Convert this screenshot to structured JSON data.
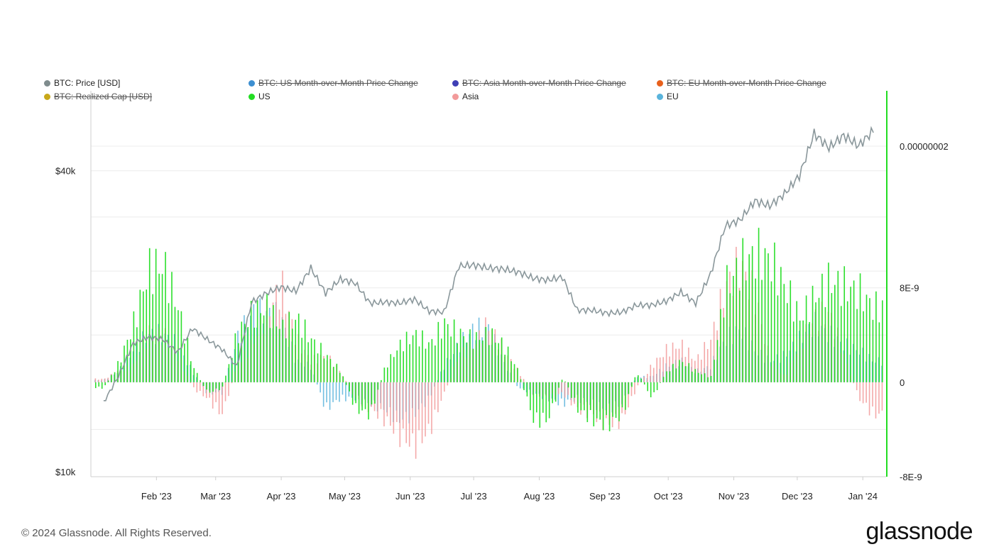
{
  "legend": [
    {
      "label": "BTC: Price [USD]",
      "color": "#7f8c8d",
      "enabled": true
    },
    {
      "label": "BTC: US Month-over-Month Price Change",
      "color": "#3d8fd1",
      "enabled": false
    },
    {
      "label": "BTC: Asia Month-over-Month Price Change",
      "color": "#3f3fb5",
      "enabled": false
    },
    {
      "label": "BTC: EU Month-over-Month Price Change",
      "color": "#e8601c",
      "enabled": false
    },
    {
      "label": "BTC: Realized Cap [USD]",
      "color": "#c8a81a",
      "enabled": false
    },
    {
      "label": "US",
      "color": "#22dd22",
      "enabled": true
    },
    {
      "label": "Asia",
      "color": "#f29a9a",
      "enabled": true
    },
    {
      "label": "EU",
      "color": "#5ab4dc",
      "enabled": true
    }
  ],
  "left_axis": {
    "ticks": [
      "$40k",
      "$10k"
    ]
  },
  "right_axis": {
    "ticks": [
      "0.00000002",
      "8E-9",
      "0",
      "-8E-9"
    ]
  },
  "x_axis": {
    "ticks": [
      "Feb '23",
      "Mar '23",
      "Apr '23",
      "May '23",
      "Jun '23",
      "Jul '23",
      "Aug '23",
      "Sep '23",
      "Oct '23",
      "Nov '23",
      "Dec '23",
      "Jan '24"
    ]
  },
  "footer": "© 2024 Glassnode. All Rights Reserved.",
  "brand": "glassnode",
  "colors": {
    "price": "#8a979b",
    "us": "#22dd22",
    "asia": "#f29a9a",
    "eu": "#5ab4dc",
    "grid": "#ececec",
    "right_axis_line": "#22dd22"
  },
  "chart_data": {
    "type": "bar",
    "x": [
      "2023-01-07",
      "2023-01-14",
      "2023-01-21",
      "2023-01-28",
      "2023-02-04",
      "2023-02-11",
      "2023-02-18",
      "2023-02-25",
      "2023-03-04",
      "2023-03-11",
      "2023-03-18",
      "2023-03-25",
      "2023-04-01",
      "2023-04-08",
      "2023-04-15",
      "2023-04-22",
      "2023-04-29",
      "2023-05-06",
      "2023-05-13",
      "2023-05-20",
      "2023-05-27",
      "2023-06-03",
      "2023-06-10",
      "2023-06-17",
      "2023-06-24",
      "2023-07-01",
      "2023-07-08",
      "2023-07-15",
      "2023-07-22",
      "2023-07-29",
      "2023-08-05",
      "2023-08-12",
      "2023-08-19",
      "2023-08-26",
      "2023-09-02",
      "2023-09-09",
      "2023-09-16",
      "2023-09-23",
      "2023-09-30",
      "2023-10-07",
      "2023-10-14",
      "2023-10-21",
      "2023-10-28",
      "2023-11-04",
      "2023-11-11",
      "2023-11-18",
      "2023-11-25",
      "2023-12-02",
      "2023-12-09",
      "2023-12-16",
      "2023-12-23",
      "2023-12-30",
      "2024-01-06"
    ],
    "series": [
      {
        "name": "US",
        "axis": "right",
        "values": [
          -5e-10,
          1.8e-09,
          5.5e-09,
          1.05e-08,
          1.1e-08,
          7e-09,
          1.5e-09,
          -1e-09,
          -5e-10,
          4.5e-09,
          6.5e-09,
          7e-09,
          5e-09,
          6e-09,
          4e-09,
          2.5e-09,
          1e-09,
          -2.5e-09,
          -3e-09,
          1.5e-09,
          3.5e-09,
          4.5e-09,
          3.5e-09,
          5.5e-09,
          4.5e-09,
          4e-09,
          4.5e-09,
          3.5e-09,
          1e-09,
          -3.5e-09,
          -3.5e-09,
          5e-10,
          -2.5e-09,
          -3.5e-09,
          -4e-09,
          -3e-09,
          1e-09,
          -1.5e-09,
          1e-09,
          2e-09,
          1e-09,
          5e-10,
          9e-09,
          1.1e-08,
          1.2e-08,
          1.15e-08,
          9e-09,
          6e-09,
          8e-09,
          9.5e-09,
          9e-09,
          8.5e-09,
          7e-09
        ]
      },
      {
        "name": "Asia",
        "axis": "right",
        "values": [
          3e-10,
          1e-09,
          1.5e-09,
          4.5e-09,
          4.5e-09,
          2.5e-09,
          -5e-10,
          -1.5e-09,
          -3e-09,
          1.5e-09,
          3.5e-09,
          6.5e-09,
          9e-09,
          4e-09,
          2e-09,
          2.5e-09,
          1e-09,
          -1.5e-09,
          -2.5e-09,
          -3.5e-09,
          -5e-09,
          -6e-09,
          -4.5e-09,
          -1e-09,
          2.5e-09,
          3.5e-09,
          5.5e-09,
          3e-09,
          1e-09,
          -1e-09,
          -1.5e-09,
          -1e-09,
          -2.5e-09,
          -3e-09,
          -4e-09,
          -3.5e-09,
          -5e-10,
          1.5e-09,
          3e-09,
          3.5e-09,
          2e-09,
          4e-09,
          9e-09,
          1.1e-08,
          8e-09,
          2e-09,
          5e-10,
          3.5e-09,
          6e-09,
          6.5e-09,
          2.5e-09,
          -1.5e-09,
          -3e-09
        ]
      },
      {
        "name": "EU",
        "axis": "right",
        "values": [
          2e-10,
          1e-09,
          3e-09,
          4.5e-09,
          4.5e-09,
          3.5e-09,
          1e-09,
          -1e-09,
          -1e-09,
          4e-09,
          6.5e-09,
          6.5e-09,
          6e-09,
          2e-09,
          1.5e-09,
          -2.5e-09,
          -1.5e-09,
          -1.5e-09,
          -2e-09,
          -2.5e-09,
          -3.5e-09,
          -3e-09,
          -1.5e-09,
          1.5e-09,
          3.5e-09,
          5e-09,
          5e-09,
          2e-09,
          -5e-10,
          -1e-09,
          -1.5e-09,
          -2e-09,
          -1.5e-09,
          -2e-09,
          -2.5e-09,
          -2e-09,
          5e-10,
          5e-10,
          1.5e-09,
          2e-09,
          1e-09,
          1.5e-09,
          4e-09,
          5e-09,
          3e-09,
          2e-09,
          2.5e-09,
          4e-09,
          5.5e-09,
          4.5e-09,
          3.5e-09,
          3e-09,
          2e-09
        ]
      },
      {
        "name": "BTC: Price [USD]",
        "axis": "left",
        "type": "line",
        "values": [
          16900,
          19500,
          22800,
          23400,
          23200,
          21900,
          24300,
          23200,
          22200,
          20500,
          26900,
          27800,
          28400,
          28000,
          30300,
          27800,
          29200,
          28800,
          26800,
          26900,
          26800,
          27200,
          26000,
          25900,
          30500,
          30600,
          30300,
          30200,
          29900,
          29300,
          29100,
          29400,
          26100,
          26100,
          25800,
          25900,
          26600,
          26600,
          27000,
          27900,
          26800,
          29700,
          34500,
          35100,
          37000,
          36500,
          37700,
          39500,
          43700,
          42300,
          43500,
          42500,
          44000
        ]
      }
    ],
    "left_ylim": [
      10000,
      45000
    ],
    "right_ylim": [
      -8e-09,
      2e-08
    ],
    "legend_position": "top-left",
    "grid": true
  }
}
